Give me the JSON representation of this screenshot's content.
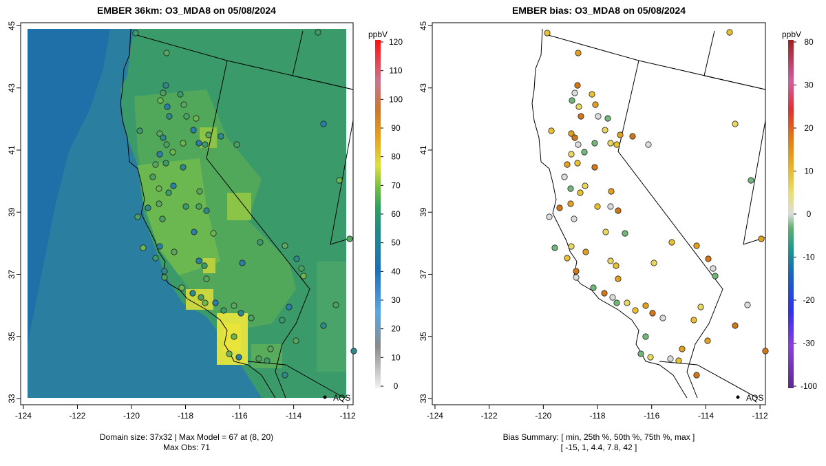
{
  "chart_data": [
    {
      "type": "map-heatmap",
      "title": "EMBER 36km: O3_MDA8 on 05/08/2024",
      "x_ticks": [
        "-124",
        "-122",
        "-120",
        "-118",
        "-116",
        "-114",
        "-112"
      ],
      "y_ticks": [
        "33",
        "35",
        "37",
        "39",
        "41",
        "43",
        "45"
      ],
      "xlim": [
        -124.1,
        -111.8
      ],
      "ylim": [
        32.8,
        45.1
      ],
      "colorbar": {
        "label": "ppbV",
        "ticks": [
          "120",
          "110",
          "100",
          "90",
          "80",
          "70",
          "60",
          "50",
          "40",
          "30",
          "20",
          "10",
          "0"
        ],
        "range": [
          -1,
          122
        ]
      },
      "footer": [
        "Domain size: 37x32 | Max Model = 67 at (8, 20)",
        "Max Obs: 71"
      ],
      "site_label": "AQS",
      "site": [
        -112.8,
        33.0
      ]
    },
    {
      "type": "map-scatter",
      "title": "EMBER bias: O3_MDA8 on 05/08/2024",
      "x_ticks": [
        "-124",
        "-122",
        "-120",
        "-118",
        "-116",
        "-114",
        "-112"
      ],
      "y_ticks": [
        "33",
        "35",
        "37",
        "39",
        "41",
        "43",
        "45"
      ],
      "xlim": [
        -124.1,
        -111.8
      ],
      "ylim": [
        32.8,
        45.1
      ],
      "colorbar": {
        "label": "ppbV",
        "ticks": [
          "80",
          "30",
          "20",
          "10",
          "0",
          "-10",
          "-20",
          "-30",
          "-100"
        ]
      },
      "footer": [
        "Bias Summary: [ min, 25th %, 50th %, 75th %, max ]",
        "[ -15,  1,  4.4,  7.8,  42 ]"
      ],
      "site_label": "AQS",
      "site": [
        -112.8,
        33.0
      ]
    }
  ],
  "colors": {
    "ocean_field": "#1f78a8",
    "land_field": "#3aa06a",
    "hot_field": "#d8dc3c",
    "bias_positive": "#e8a020",
    "bias_negative": "#4aa860"
  }
}
